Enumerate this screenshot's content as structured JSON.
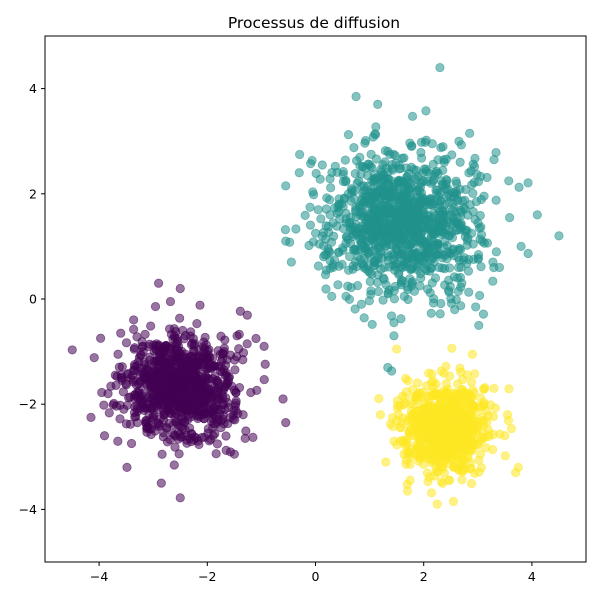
{
  "chart_data": {
    "type": "scatter",
    "title": "Processus de diffusion",
    "xlabel": "",
    "ylabel": "",
    "xlim": [
      -5,
      5
    ],
    "ylim": [
      -5,
      5
    ],
    "x_ticks": [
      -4,
      -2,
      0,
      2,
      4
    ],
    "y_ticks": [
      -4,
      -2,
      0,
      2,
      4
    ],
    "x_tick_labels": [
      "−4",
      "−2",
      "0",
      "2",
      "4"
    ],
    "y_tick_labels": [
      "−4",
      "−2",
      "0",
      "2",
      "4"
    ],
    "grid": false,
    "legend": "none",
    "marker_alpha": 0.55,
    "series": [
      {
        "color": "#440154",
        "center": [
          -2.5,
          -1.7
        ],
        "spread": 0.5,
        "count": 900,
        "points": [
          [
            -4.15,
            -2.25
          ],
          [
            -3.9,
            -2.6
          ],
          [
            -3.7,
            -1.45
          ],
          [
            -3.65,
            -1.05
          ],
          [
            -3.6,
            -0.65
          ],
          [
            -2.9,
            0.3
          ],
          [
            -2.5,
            0.2
          ],
          [
            -2.85,
            -3.5
          ],
          [
            -2.5,
            -3.78
          ],
          [
            -1.45,
            -0.7
          ],
          [
            -1.1,
            -0.75
          ],
          [
            -0.95,
            -0.9
          ],
          [
            -0.55,
            -2.35
          ],
          [
            -0.6,
            -1.9
          ],
          [
            -1.3,
            -2.65
          ],
          [
            -1.5,
            -2.95
          ]
        ]
      },
      {
        "color": "#21918c",
        "center": [
          1.6,
          1.5
        ],
        "spread": 0.7,
        "count": 1100,
        "points": [
          [
            -0.55,
            1.1
          ],
          [
            -0.55,
            2.15
          ],
          [
            -0.3,
            2.4
          ],
          [
            0.3,
            0.05
          ],
          [
            0.75,
            3.85
          ],
          [
            1.15,
            3.7
          ],
          [
            2.3,
            4.4
          ],
          [
            4.1,
            1.6
          ],
          [
            4.5,
            1.2
          ],
          [
            3.8,
            1.0
          ],
          [
            3.4,
            0.6
          ],
          [
            1.45,
            -0.45
          ],
          [
            1.45,
            -0.7
          ],
          [
            0.85,
            -0.1
          ],
          [
            0.2,
            0.55
          ],
          [
            3.3,
            2.65
          ],
          [
            2.85,
            3.15
          ]
        ]
      },
      {
        "color": "#fde725",
        "center": [
          2.4,
          -2.45
        ],
        "spread": 0.4,
        "count": 800,
        "points": [
          [
            1.5,
            -0.95
          ],
          [
            2.9,
            -1.05
          ],
          [
            3.3,
            -1.7
          ],
          [
            3.55,
            -2.2
          ],
          [
            3.7,
            -3.3
          ],
          [
            1.7,
            -3.65
          ],
          [
            2.25,
            -3.9
          ],
          [
            2.55,
            -3.85
          ],
          [
            1.2,
            -2.2
          ],
          [
            1.3,
            -3.1
          ],
          [
            3.5,
            -2.6
          ]
        ]
      }
    ]
  }
}
